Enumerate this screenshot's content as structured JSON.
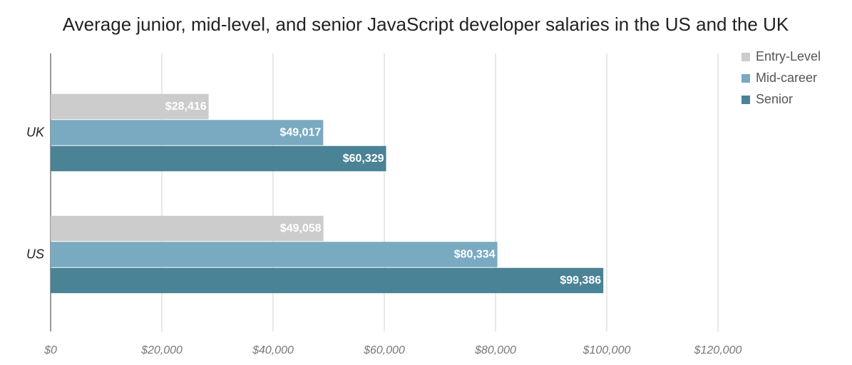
{
  "chart_data": {
    "type": "bar",
    "orientation": "horizontal",
    "title": "Average junior, mid-level, and senior JavaScript developer salaries in the US and the UK",
    "categories": [
      "UK",
      "US"
    ],
    "series": [
      {
        "name": "Entry-Level",
        "color": "#cccccc",
        "values": [
          28416,
          49058
        ],
        "value_labels": [
          "$28,416",
          "$49,058"
        ]
      },
      {
        "name": "Mid-career",
        "color": "#79aac1",
        "values": [
          49017,
          80334
        ],
        "value_labels": [
          "$49,017",
          "$80,334"
        ]
      },
      {
        "name": "Senior",
        "color": "#4a8296",
        "values": [
          60329,
          99386
        ],
        "value_labels": [
          "$60,329",
          "$99,386"
        ]
      }
    ],
    "xlim": [
      0,
      120000
    ],
    "xticks": [
      {
        "value": 0,
        "label": "$0"
      },
      {
        "value": 20000,
        "label": "$20,000"
      },
      {
        "value": 40000,
        "label": "$40,000"
      },
      {
        "value": 60000,
        "label": "$60,000"
      },
      {
        "value": 80000,
        "label": "$80,000"
      },
      {
        "value": 100000,
        "label": "$100,000"
      },
      {
        "value": 120000,
        "label": "$120,000"
      }
    ],
    "grid": true,
    "legend": "top-right"
  }
}
